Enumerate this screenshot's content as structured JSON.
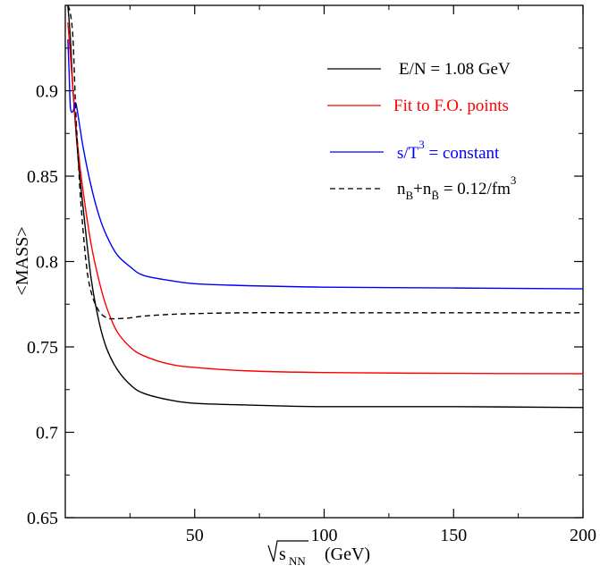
{
  "chart_data": {
    "type": "line",
    "title": "",
    "xlabel": {
      "radical_text": "s",
      "subscript": "NN",
      "unit": "(GeV)"
    },
    "ylabel": "<MASS>",
    "xlim": [
      0,
      200
    ],
    "ylim": [
      0.65,
      0.95
    ],
    "x_ticks": [
      50,
      100,
      150,
      200
    ],
    "x_tick_labels": [
      "50",
      "100",
      "150",
      "200"
    ],
    "y_ticks": [
      0.65,
      0.7,
      0.75,
      0.8,
      0.85,
      0.9
    ],
    "y_tick_labels": [
      "0.65",
      "0.7",
      "0.75",
      "0.8",
      "0.85",
      "0.9"
    ],
    "grid": false,
    "legend_position": "top-right",
    "series": [
      {
        "name": "E/N = 1.08 GeV",
        "color": "#000000",
        "dash": "solid",
        "x": [
          1,
          2,
          3,
          5,
          7,
          10,
          13,
          16,
          20,
          25,
          30,
          40,
          50,
          70,
          100,
          150,
          200
        ],
        "y": [
          0.95,
          0.93,
          0.9,
          0.86,
          0.83,
          0.79,
          0.765,
          0.749,
          0.737,
          0.728,
          0.723,
          0.719,
          0.717,
          0.716,
          0.715,
          0.715,
          0.7145
        ]
      },
      {
        "name": "Fit to F.O. points",
        "color": "#ff0000",
        "dash": "solid",
        "x": [
          1,
          2,
          3,
          5,
          7,
          10,
          13,
          16,
          20,
          25,
          30,
          40,
          50,
          70,
          100,
          150,
          200
        ],
        "y": [
          0.94,
          0.92,
          0.9,
          0.865,
          0.84,
          0.81,
          0.789,
          0.773,
          0.759,
          0.75,
          0.745,
          0.74,
          0.738,
          0.736,
          0.735,
          0.7345,
          0.7343
        ]
      },
      {
        "name": "s/T = constant",
        "name_superscript": "3",
        "color": "#0000ff",
        "dash": "solid",
        "x": [
          1,
          1.5,
          2,
          3,
          4,
          5,
          7,
          10,
          13,
          16,
          20,
          25,
          30,
          40,
          50,
          67,
          100,
          150,
          200
        ],
        "y": [
          0.93,
          0.91,
          0.89,
          0.888,
          0.893,
          0.885,
          0.866,
          0.844,
          0.827,
          0.815,
          0.804,
          0.797,
          0.792,
          0.789,
          0.787,
          0.786,
          0.785,
          0.7845,
          0.784
        ]
      },
      {
        "name_parts": {
          "n1": "n",
          "sub1": "B",
          "plus": "+",
          "n2": "n",
          "sub2": "B̄",
          "rest": " = 0.12/fm",
          "sup": "3"
        },
        "color": "#000000",
        "dash": "dashed",
        "x": [
          1,
          2,
          3,
          4,
          5,
          6,
          8,
          10,
          13,
          16,
          18,
          20,
          25,
          30,
          40,
          50,
          70,
          100,
          150,
          200
        ],
        "y": [
          0.95,
          0.945,
          0.93,
          0.89,
          0.86,
          0.835,
          0.8,
          0.782,
          0.771,
          0.767,
          0.7665,
          0.7665,
          0.767,
          0.768,
          0.769,
          0.7695,
          0.77,
          0.77,
          0.77,
          0.77
        ]
      }
    ]
  }
}
